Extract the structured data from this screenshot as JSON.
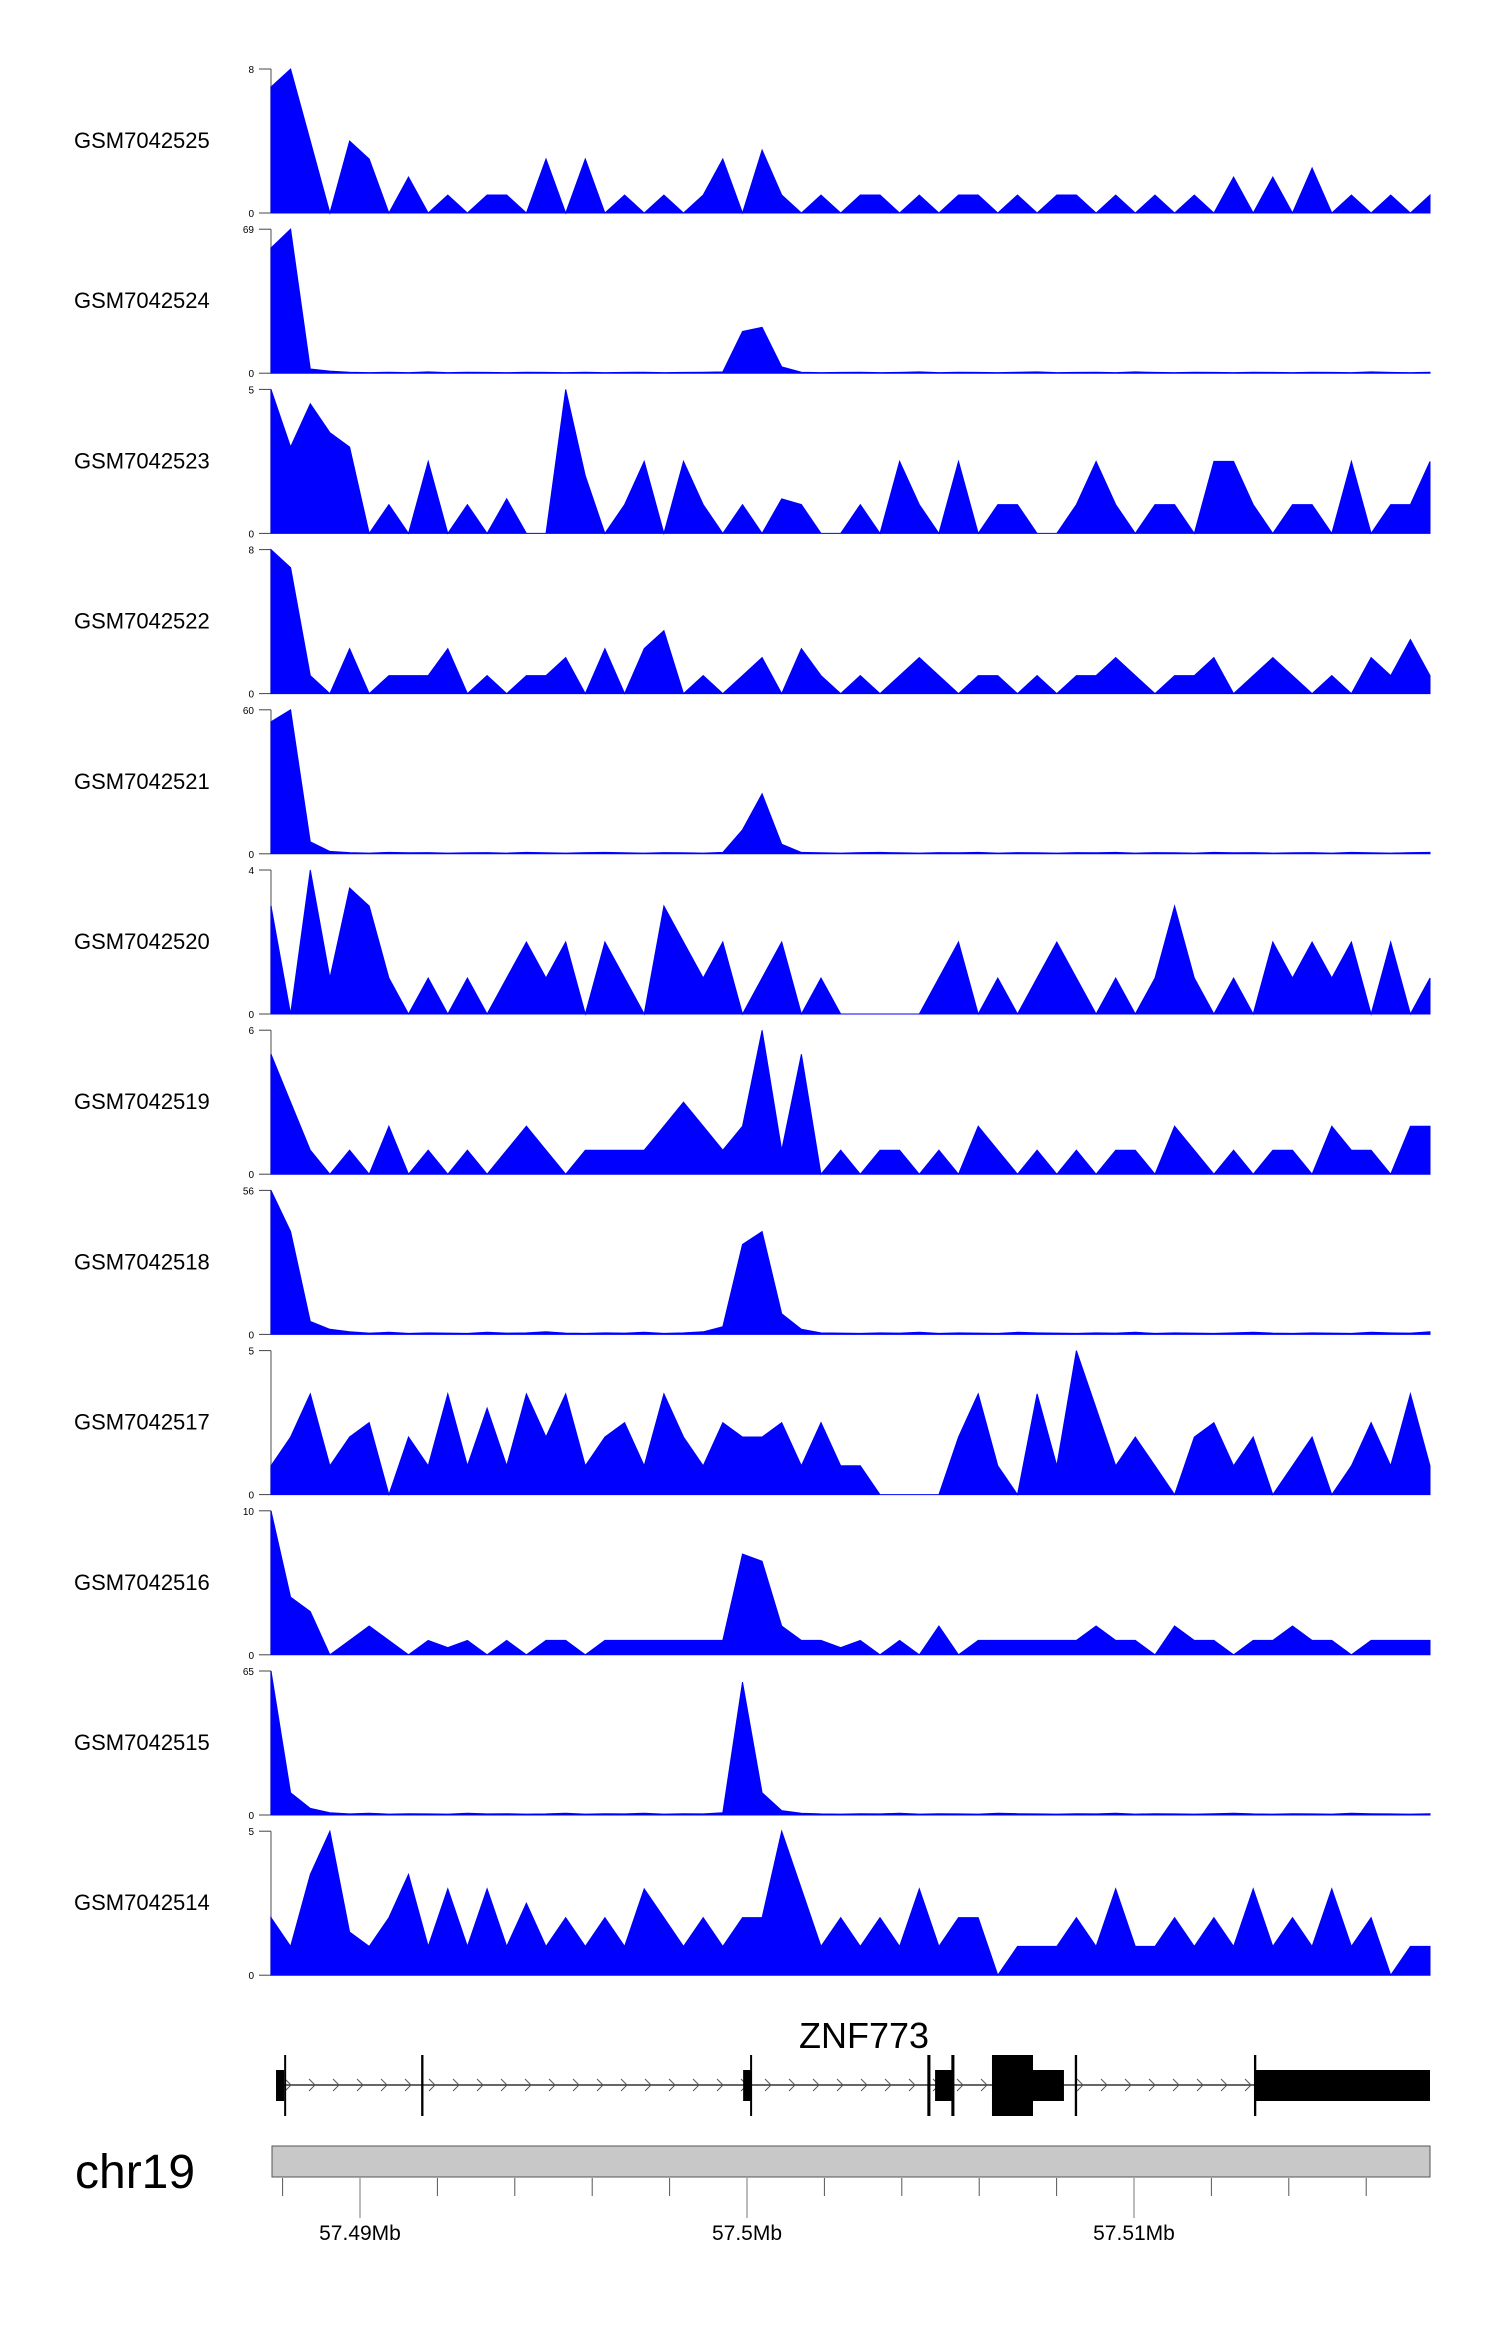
{
  "chart_data": {
    "type": "area",
    "title": "",
    "region": {
      "chromosome": "chr19",
      "start_mb": 57.4877,
      "end_mb": 57.5177
    },
    "x_axis": {
      "ticks": [
        {
          "value": 57.49,
          "label": "57.49Mb"
        },
        {
          "value": 57.5,
          "label": "57.5Mb"
        },
        {
          "value": 57.51,
          "label": "57.51Mb"
        }
      ],
      "minor_step_mb": 0.002,
      "minor_from": 57.488,
      "minor_to": 57.516
    },
    "bins": 60,
    "color": "#0000FF",
    "series": [
      {
        "name": "GSM7042525",
        "ymax": 8,
        "ymax_label": "8",
        "ymin_label": "0",
        "values": [
          7,
          8,
          4,
          0,
          4,
          3,
          0,
          2,
          0,
          1,
          0,
          1,
          1,
          0,
          3,
          0,
          3,
          0,
          1,
          0,
          1,
          0,
          1,
          3,
          0,
          3.5,
          1,
          0,
          1,
          0,
          1,
          1,
          0,
          1,
          0,
          1,
          1,
          0,
          1,
          0,
          1,
          1,
          0,
          1,
          0,
          1,
          0,
          1,
          0,
          2,
          0,
          2,
          0,
          2.5,
          0,
          1,
          0,
          1,
          0,
          1
        ]
      },
      {
        "name": "GSM7042524",
        "ymax": 69,
        "ymax_label": "69",
        "ymin_label": "0",
        "values": [
          60,
          69,
          2,
          1,
          0.5,
          0.3,
          0.5,
          0.3,
          0.6,
          0.3,
          0.5,
          0.4,
          0.3,
          0.5,
          0.4,
          0.3,
          0.5,
          0.3,
          0.4,
          0.5,
          0.3,
          0.4,
          0.5,
          0.6,
          20,
          22,
          3,
          0.5,
          0.3,
          0.4,
          0.5,
          0.3,
          0.4,
          0.6,
          0.3,
          0.5,
          0.4,
          0.3,
          0.5,
          0.6,
          0.3,
          0.4,
          0.5,
          0.3,
          0.6,
          0.4,
          0.3,
          0.5,
          0.4,
          0.3,
          0.5,
          0.4,
          0.3,
          0.5,
          0.4,
          0.3,
          0.6,
          0.4,
          0.3,
          0.5
        ]
      },
      {
        "name": "GSM7042523",
        "ymax": 5,
        "ymax_label": "5",
        "ymin_label": "0",
        "values": [
          5,
          3,
          4.5,
          3.5,
          3,
          0,
          1,
          0,
          2.5,
          0,
          1,
          0,
          1.2,
          0,
          0,
          5,
          2,
          0,
          1,
          2.5,
          0,
          2.5,
          1,
          0,
          1,
          0,
          1.2,
          1,
          0,
          0,
          1,
          0,
          2.5,
          1,
          0,
          2.5,
          0,
          1,
          1,
          0,
          0,
          1,
          2.5,
          1,
          0,
          1,
          1,
          0,
          2.5,
          2.5,
          1,
          0,
          1,
          1,
          0,
          2.5,
          0,
          1,
          1,
          2.5
        ]
      },
      {
        "name": "GSM7042522",
        "ymax": 8,
        "ymax_label": "8",
        "ymin_label": "0",
        "values": [
          8,
          7,
          1,
          0,
          2.5,
          0,
          1,
          1,
          1,
          2.5,
          0,
          1,
          0,
          1,
          1,
          2,
          0,
          2.5,
          0,
          2.5,
          3.5,
          0,
          1,
          0,
          1,
          2,
          0,
          2.5,
          1,
          0,
          1,
          0,
          1,
          2,
          1,
          0,
          1,
          1,
          0,
          1,
          0,
          1,
          1,
          2,
          1,
          0,
          1,
          1,
          2,
          0,
          1,
          2,
          1,
          0,
          1,
          0,
          2,
          1,
          3,
          1
        ]
      },
      {
        "name": "GSM7042521",
        "ymax": 60,
        "ymax_label": "60",
        "ymin_label": "0",
        "values": [
          55,
          60,
          5,
          1,
          0.5,
          0.3,
          0.6,
          0.4,
          0.5,
          0.3,
          0.4,
          0.5,
          0.3,
          0.6,
          0.4,
          0.3,
          0.5,
          0.6,
          0.4,
          0.3,
          0.5,
          0.4,
          0.3,
          0.6,
          10,
          25,
          4,
          0.6,
          0.4,
          0.3,
          0.5,
          0.6,
          0.4,
          0.3,
          0.5,
          0.4,
          0.6,
          0.3,
          0.5,
          0.4,
          0.3,
          0.5,
          0.4,
          0.6,
          0.3,
          0.5,
          0.4,
          0.3,
          0.6,
          0.4,
          0.5,
          0.3,
          0.4,
          0.5,
          0.3,
          0.6,
          0.4,
          0.3,
          0.5,
          0.6
        ]
      },
      {
        "name": "GSM7042520",
        "ymax": 4,
        "ymax_label": "4",
        "ymin_label": "0",
        "values": [
          3,
          0,
          4,
          1,
          3.5,
          3,
          1,
          0,
          1,
          0,
          1,
          0,
          1,
          2,
          1,
          2,
          0,
          2,
          1,
          0,
          3,
          2,
          1,
          2,
          0,
          1,
          2,
          0,
          1,
          0,
          0,
          0,
          0,
          0,
          1,
          2,
          0,
          1,
          0,
          1,
          2,
          1,
          0,
          1,
          0,
          1,
          3,
          1,
          0,
          1,
          0,
          2,
          1,
          2,
          1,
          2,
          0,
          2,
          0,
          1
        ]
      },
      {
        "name": "GSM7042519",
        "ymax": 6,
        "ymax_label": "6",
        "ymin_label": "0",
        "values": [
          5,
          3,
          1,
          0,
          1,
          0,
          2,
          0,
          1,
          0,
          1,
          0,
          1,
          2,
          1,
          0,
          1,
          1,
          1,
          1,
          2,
          3,
          2,
          1,
          2,
          6,
          1,
          5,
          0,
          1,
          0,
          1,
          1,
          0,
          1,
          0,
          2,
          1,
          0,
          1,
          0,
          1,
          0,
          1,
          1,
          0,
          2,
          1,
          0,
          1,
          0,
          1,
          1,
          0,
          2,
          1,
          1,
          0,
          2,
          2
        ]
      },
      {
        "name": "GSM7042518",
        "ymax": 56,
        "ymax_label": "56",
        "ymin_label": "0",
        "values": [
          56,
          40,
          5,
          2,
          1,
          0.5,
          0.8,
          0.4,
          0.6,
          0.5,
          0.4,
          0.8,
          0.5,
          0.6,
          1,
          0.5,
          0.4,
          0.6,
          0.5,
          0.8,
          0.4,
          0.6,
          1,
          3,
          35,
          40,
          8,
          2,
          0.6,
          0.5,
          0.4,
          0.6,
          0.5,
          0.8,
          0.4,
          0.6,
          0.5,
          0.4,
          0.8,
          0.6,
          0.5,
          0.4,
          0.6,
          0.5,
          0.8,
          0.4,
          0.6,
          0.5,
          0.4,
          0.6,
          0.8,
          0.5,
          0.4,
          0.6,
          0.5,
          0.4,
          0.8,
          0.6,
          0.5,
          1
        ]
      },
      {
        "name": "GSM7042517",
        "ymax": 5,
        "ymax_label": "5",
        "ymin_label": "0",
        "values": [
          1,
          2,
          3.5,
          1,
          2,
          2.5,
          0,
          2,
          1,
          3.5,
          1,
          3,
          1,
          3.5,
          2,
          3.5,
          1,
          2,
          2.5,
          1,
          3.5,
          2,
          1,
          2.5,
          2,
          2,
          2.5,
          1,
          2.5,
          1,
          1,
          0,
          0,
          0,
          0,
          2,
          3.5,
          1,
          0,
          3.5,
          1,
          5,
          3,
          1,
          2,
          1,
          0,
          2,
          2.5,
          1,
          2,
          0,
          1,
          2,
          0,
          1,
          2.5,
          1,
          3.5,
          1
        ]
      },
      {
        "name": "GSM7042516",
        "ymax": 10,
        "ymax_label": "10",
        "ymin_label": "0",
        "values": [
          10,
          4,
          3,
          0,
          1,
          2,
          1,
          0,
          1,
          0.5,
          1,
          0,
          1,
          0,
          1,
          1,
          0,
          1,
          1,
          1,
          1,
          1,
          1,
          1,
          7,
          6.5,
          2,
          1,
          1,
          0.5,
          1,
          0,
          1,
          0,
          2,
          0,
          1,
          1,
          1,
          1,
          1,
          1,
          2,
          1,
          1,
          0,
          2,
          1,
          1,
          0,
          1,
          1,
          2,
          1,
          1,
          0,
          1,
          1,
          1,
          1
        ]
      },
      {
        "name": "GSM7042515",
        "ymax": 65,
        "ymax_label": "65",
        "ymin_label": "0",
        "values": [
          65,
          10,
          3,
          1,
          0.5,
          0.8,
          0.4,
          0.6,
          0.5,
          0.4,
          0.8,
          0.5,
          0.6,
          0.4,
          0.5,
          0.8,
          0.4,
          0.6,
          0.5,
          0.8,
          0.4,
          0.6,
          0.5,
          1,
          60,
          10,
          2,
          0.8,
          0.5,
          0.4,
          0.6,
          0.5,
          0.8,
          0.4,
          0.6,
          0.5,
          0.4,
          0.8,
          0.6,
          0.5,
          0.4,
          0.6,
          0.5,
          0.8,
          0.4,
          0.6,
          0.5,
          0.4,
          0.6,
          0.8,
          0.5,
          0.4,
          0.6,
          0.5,
          0.4,
          0.8,
          0.6,
          0.5,
          0.4,
          0.6
        ]
      },
      {
        "name": "GSM7042514",
        "ymax": 5,
        "ymax_label": "5",
        "ymin_label": "0",
        "values": [
          2,
          1,
          3.5,
          5,
          1.5,
          1,
          2,
          3.5,
          1,
          3,
          1,
          3,
          1,
          2.5,
          1,
          2,
          1,
          2,
          1,
          3,
          2,
          1,
          2,
          1,
          2,
          2,
          5,
          3,
          1,
          2,
          1,
          2,
          1,
          3,
          1,
          2,
          2,
          0,
          1,
          1,
          1,
          2,
          1,
          3,
          1,
          1,
          2,
          1,
          2,
          1,
          3,
          1,
          2,
          1,
          3,
          1,
          2,
          0,
          1,
          1
        ]
      }
    ],
    "gene": {
      "name": "ZNF773",
      "strand": "+",
      "features_kb_from_57_5Mb": [
        {
          "start": -12.17,
          "end": -11.96,
          "kind": "thick"
        },
        {
          "start": -11.96,
          "end": -11.92,
          "kind": "line"
        },
        {
          "start": -8.42,
          "end": -8.36,
          "kind": "line"
        },
        {
          "start": -0.1,
          "end": 0.1,
          "kind": "thick"
        },
        {
          "start": 0.08,
          "end": 0.12,
          "kind": "line"
        },
        {
          "start": 4.66,
          "end": 4.74,
          "kind": "line"
        },
        {
          "start": 4.86,
          "end": 5.3,
          "kind": "thick"
        },
        {
          "start": 5.28,
          "end": 5.36,
          "kind": "line"
        },
        {
          "start": 6.33,
          "end": 7.39,
          "kind": "tall"
        },
        {
          "start": 7.39,
          "end": 8.19,
          "kind": "thick"
        },
        {
          "start": 8.47,
          "end": 8.53,
          "kind": "line"
        },
        {
          "start": 13.1,
          "end": 13.16,
          "kind": "line"
        },
        {
          "start": 13.13,
          "end": 17.7,
          "kind": "thick"
        }
      ]
    },
    "ideogram": {
      "label": "chr19",
      "color": "#C8C8C8"
    }
  }
}
